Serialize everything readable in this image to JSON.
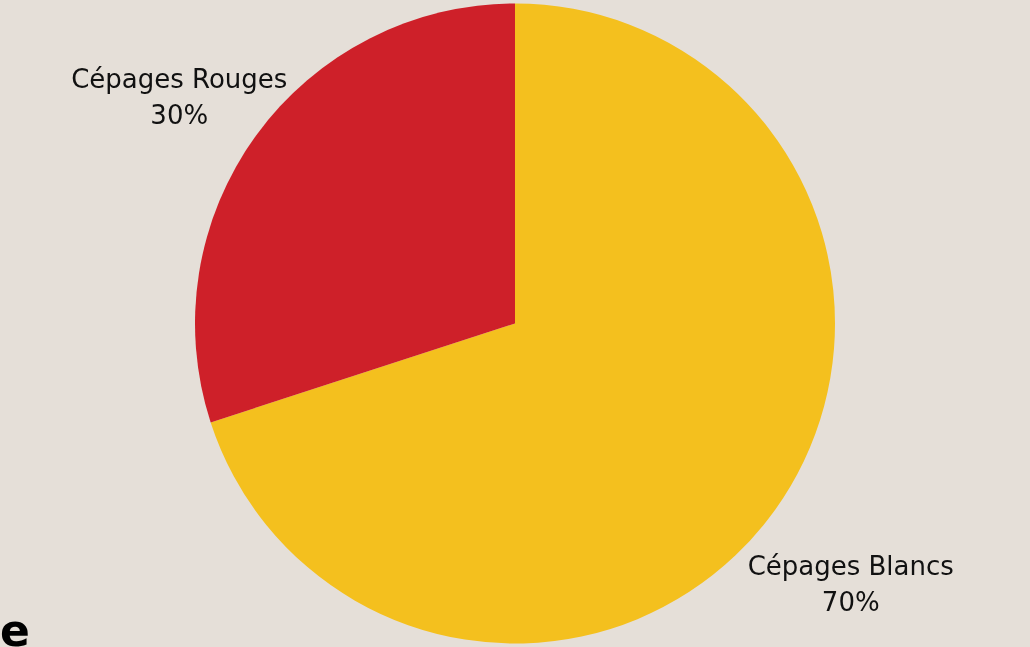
{
  "chart_data": {
    "type": "pie",
    "categories": [
      "Cépages Blancs",
      "Cépages Rouges"
    ],
    "values": [
      70,
      30
    ],
    "colors": [
      "#f4c01e",
      "#ce2029"
    ],
    "value_labels": [
      "70%",
      "30%"
    ],
    "annotations": [
      "e"
    ]
  }
}
